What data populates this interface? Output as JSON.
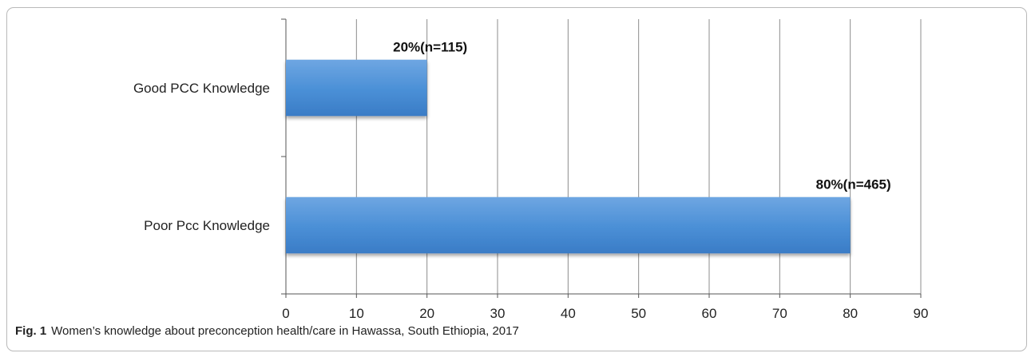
{
  "chart_data": {
    "type": "bar",
    "orientation": "horizontal",
    "categories": [
      "Good PCC Knowledge",
      "Poor Pcc Knowledge"
    ],
    "values": [
      20,
      80
    ],
    "data_labels": [
      "20%(n=115)",
      "80%(n=465)"
    ],
    "xlim": [
      0,
      90
    ],
    "xticks": [
      "0",
      "10",
      "20",
      "30",
      "40",
      "50",
      "60",
      "70",
      "80",
      "90"
    ],
    "grid": true,
    "bar_color": "#4a8fd6"
  },
  "caption": {
    "label": "Fig. 1",
    "text": "Women’s knowledge about preconception health/care in Hawassa, South Ethiopia, 2017"
  }
}
